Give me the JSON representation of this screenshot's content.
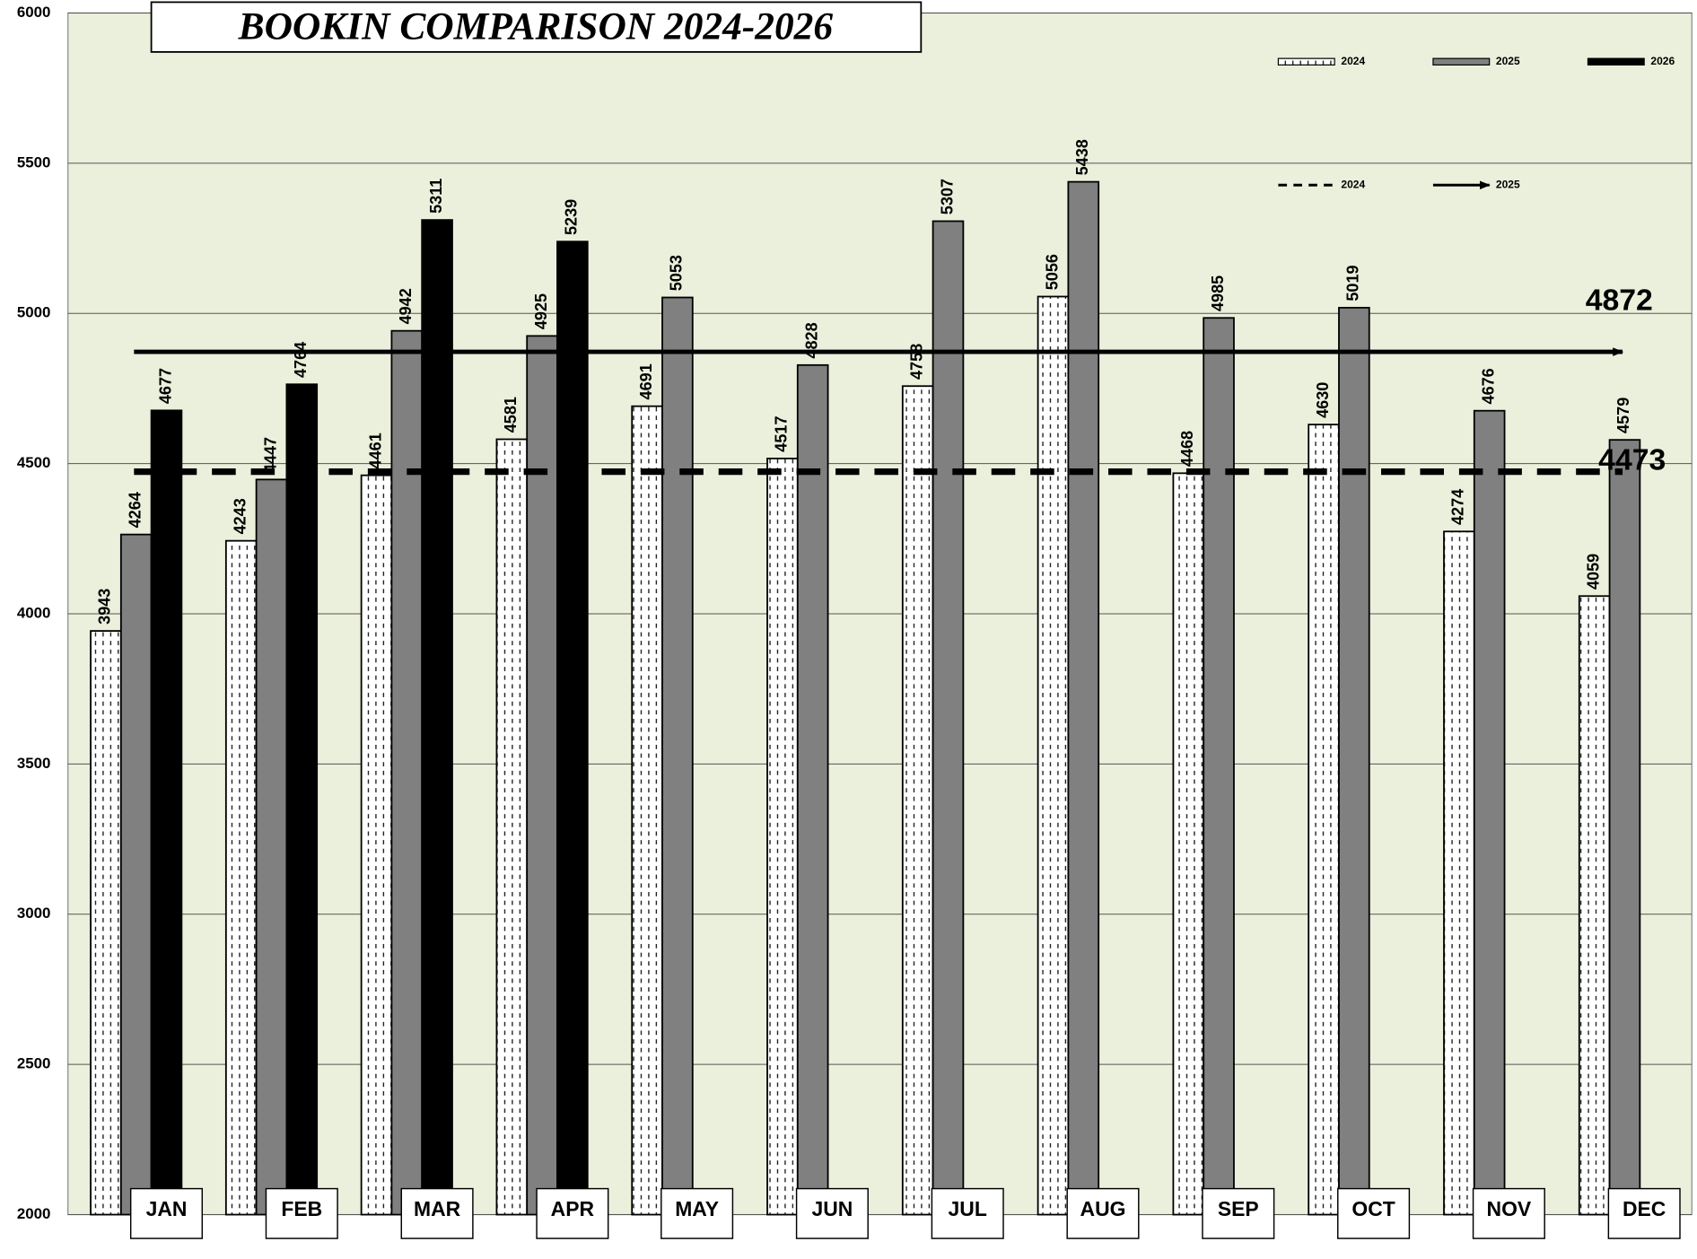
{
  "chart_data": {
    "type": "bar",
    "title": "BOOKIN COMPARISON 2024-2026",
    "categories": [
      "JAN",
      "FEB",
      "MAR",
      "APR",
      "MAY",
      "JUN",
      "JUL",
      "AUG",
      "SEP",
      "OCT",
      "NOV",
      "DEC"
    ],
    "series": [
      {
        "name": "2024",
        "color": "#ffffff",
        "values": [
          3943,
          4243,
          4461,
          4581,
          4691,
          4517,
          4758,
          5056,
          4468,
          4630,
          4274,
          4059
        ]
      },
      {
        "name": "2025",
        "color": "#808080",
        "values": [
          4264,
          4447,
          4942,
          4925,
          5053,
          4828,
          5307,
          5438,
          4985,
          5019,
          4676,
          4579
        ]
      },
      {
        "name": "2026",
        "color": "#000000",
        "values": [
          4677,
          4764,
          5311,
          5239,
          null,
          null,
          null,
          null,
          null,
          null,
          null,
          null
        ]
      }
    ],
    "reference_lines": [
      {
        "name": "2024",
        "value": 4473,
        "style": "dashed"
      },
      {
        "name": "2025",
        "value": 4872,
        "style": "arrow"
      }
    ],
    "ylim": [
      2000,
      6000
    ],
    "yticks": [
      2000,
      2500,
      3000,
      3500,
      4000,
      4500,
      5000,
      5500,
      6000
    ],
    "grid": true,
    "legend": "top-right",
    "background": "#ebf0dc"
  }
}
